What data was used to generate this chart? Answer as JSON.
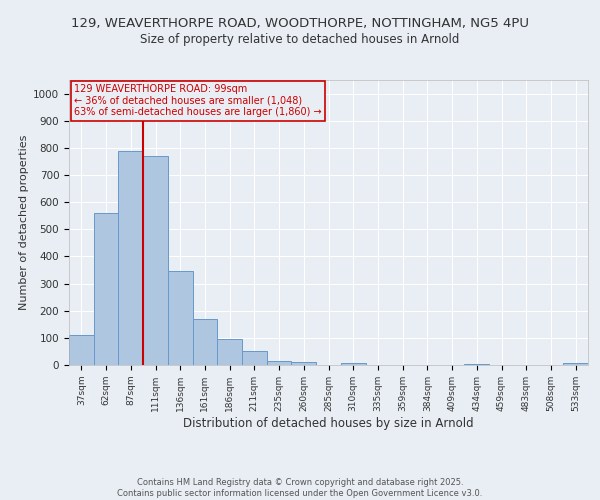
{
  "title_line1": "129, WEAVERTHORPE ROAD, WOODTHORPE, NOTTINGHAM, NG5 4PU",
  "title_line2": "Size of property relative to detached houses in Arnold",
  "xlabel": "Distribution of detached houses by size in Arnold",
  "ylabel": "Number of detached properties",
  "categories": [
    "37sqm",
    "62sqm",
    "87sqm",
    "111sqm",
    "136sqm",
    "161sqm",
    "186sqm",
    "211sqm",
    "235sqm",
    "260sqm",
    "285sqm",
    "310sqm",
    "335sqm",
    "359sqm",
    "384sqm",
    "409sqm",
    "434sqm",
    "459sqm",
    "483sqm",
    "508sqm",
    "533sqm"
  ],
  "values": [
    112,
    560,
    790,
    770,
    345,
    170,
    97,
    52,
    13,
    10,
    0,
    8,
    0,
    0,
    0,
    0,
    5,
    0,
    0,
    0,
    7
  ],
  "bar_color": "#aec6e0",
  "bar_edge_color": "#6699cc",
  "background_color": "#e8eef4",
  "grid_color": "#ffffff",
  "vline_color": "#cc0000",
  "annotation_text": "129 WEAVERTHORPE ROAD: 99sqm\n← 36% of detached houses are smaller (1,048)\n63% of semi-detached houses are larger (1,860) →",
  "annotation_box_color": "#cc0000",
  "footer": "Contains HM Land Registry data © Crown copyright and database right 2025.\nContains public sector information licensed under the Open Government Licence v3.0.",
  "ylim": [
    0,
    1050
  ],
  "yticks": [
    0,
    100,
    200,
    300,
    400,
    500,
    600,
    700,
    800,
    900,
    1000
  ]
}
